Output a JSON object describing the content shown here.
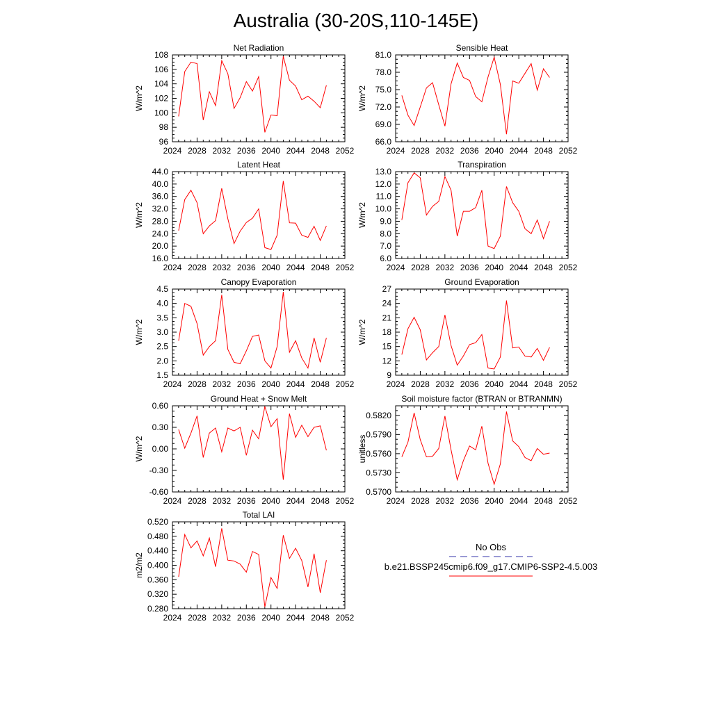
{
  "figure": {
    "title": "Australia (30-20S,110-145E)"
  },
  "legend": {
    "entries": [
      {
        "label": "No Obs",
        "color": "#3333aa",
        "dash": true
      },
      {
        "label": "b.e21.BSSP245cmip6.f09_g17.CMIP6-SSP2-4.5.003",
        "color": "#ff0000",
        "dash": false
      }
    ]
  },
  "chart_data": [
    {
      "type": "line",
      "title": "Net Radiation",
      "ylabel": "W/m^2",
      "xlim": [
        2024,
        2052
      ],
      "ylim": [
        96,
        108
      ],
      "xticks": [
        2024,
        2028,
        2032,
        2036,
        2040,
        2044,
        2048,
        2052
      ],
      "yticks": [
        96,
        98,
        100,
        102,
        104,
        106,
        108
      ],
      "ytick_labels": [
        "96",
        "98",
        "100",
        "102",
        "104",
        "106",
        "108"
      ],
      "series": [
        {
          "color": "#ff0000",
          "x": [
            2025,
            2026,
            2027,
            2028,
            2029,
            2030,
            2031,
            2032,
            2033,
            2034,
            2035,
            2036,
            2037,
            2038,
            2039,
            2040,
            2041,
            2042,
            2043,
            2044,
            2045,
            2046,
            2047,
            2048,
            2049
          ],
          "y": [
            99.5,
            105.7,
            107.0,
            106.8,
            99.0,
            102.9,
            101.0,
            107.2,
            105.4,
            100.6,
            102.1,
            104.3,
            103.0,
            105.0,
            97.3,
            99.7,
            99.6,
            107.8,
            104.5,
            103.7,
            101.8,
            102.3,
            101.6,
            100.7,
            103.8
          ]
        }
      ]
    },
    {
      "type": "line",
      "title": "Sensible Heat",
      "ylabel": "W/m^2",
      "xlim": [
        2024,
        2052
      ],
      "ylim": [
        66,
        81
      ],
      "xticks": [
        2024,
        2028,
        2032,
        2036,
        2040,
        2044,
        2048,
        2052
      ],
      "yticks": [
        66,
        69,
        72,
        75,
        78,
        81
      ],
      "ytick_labels": [
        "66.0",
        "69.0",
        "72.0",
        "75.0",
        "78.0",
        "81.0"
      ],
      "series": [
        {
          "color": "#ff0000",
          "x": [
            2025,
            2026,
            2027,
            2028,
            2029,
            2030,
            2031,
            2032,
            2033,
            2034,
            2035,
            2036,
            2037,
            2038,
            2039,
            2040,
            2041,
            2042,
            2043,
            2044,
            2045,
            2046,
            2047,
            2048,
            2049
          ],
          "y": [
            74.0,
            70.6,
            68.8,
            72.0,
            75.3,
            76.2,
            72.4,
            68.7,
            76.0,
            79.6,
            77.1,
            76.6,
            73.8,
            72.9,
            77.2,
            80.6,
            75.9,
            67.3,
            76.5,
            76.1,
            77.8,
            79.5,
            74.9,
            78.6,
            77.1
          ]
        }
      ]
    },
    {
      "type": "line",
      "title": "Latent Heat",
      "ylabel": "W/m^2",
      "xlim": [
        2024,
        2052
      ],
      "ylim": [
        16,
        44
      ],
      "xticks": [
        2024,
        2028,
        2032,
        2036,
        2040,
        2044,
        2048,
        2052
      ],
      "yticks": [
        16,
        20,
        24,
        28,
        32,
        36,
        40,
        44
      ],
      "ytick_labels": [
        "16.0",
        "20.0",
        "24.0",
        "28.0",
        "32.0",
        "36.0",
        "40.0",
        "44.0"
      ],
      "series": [
        {
          "color": "#ff0000",
          "x": [
            2025,
            2026,
            2027,
            2028,
            2029,
            2030,
            2031,
            2032,
            2033,
            2034,
            2035,
            2036,
            2037,
            2038,
            2039,
            2040,
            2041,
            2042,
            2043,
            2044,
            2045,
            2046,
            2047,
            2048,
            2049
          ],
          "y": [
            25.0,
            35.0,
            38.0,
            34.0,
            24.0,
            26.5,
            28.2,
            38.6,
            28.8,
            20.8,
            24.8,
            27.6,
            29.0,
            32.0,
            19.5,
            18.9,
            23.5,
            41.0,
            27.5,
            27.4,
            23.5,
            22.8,
            26.4,
            21.8,
            26.5
          ]
        }
      ]
    },
    {
      "type": "line",
      "title": "Transpiration",
      "ylabel": "W/m^2",
      "xlim": [
        2024,
        2052
      ],
      "ylim": [
        6,
        13
      ],
      "xticks": [
        2024,
        2028,
        2032,
        2036,
        2040,
        2044,
        2048,
        2052
      ],
      "yticks": [
        6,
        7,
        8,
        9,
        10,
        11,
        12,
        13
      ],
      "ytick_labels": [
        "6.0",
        "7.0",
        "8.0",
        "9.0",
        "10.0",
        "11.0",
        "12.0",
        "13.0"
      ],
      "series": [
        {
          "color": "#ff0000",
          "x": [
            2025,
            2026,
            2027,
            2028,
            2029,
            2030,
            2031,
            2032,
            2033,
            2034,
            2035,
            2036,
            2037,
            2038,
            2039,
            2040,
            2041,
            2042,
            2043,
            2044,
            2045,
            2046,
            2047,
            2048,
            2049
          ],
          "y": [
            9.1,
            12.1,
            12.9,
            12.5,
            9.5,
            10.2,
            10.6,
            12.6,
            11.5,
            7.8,
            9.8,
            9.8,
            10.1,
            11.5,
            7.0,
            6.8,
            7.8,
            11.8,
            10.5,
            9.8,
            8.4,
            8.0,
            9.1,
            7.6,
            9.0
          ]
        }
      ]
    },
    {
      "type": "line",
      "title": "Canopy Evaporation",
      "ylabel": "W/m^2",
      "xlim": [
        2024,
        2052
      ],
      "ylim": [
        1.5,
        4.5
      ],
      "xticks": [
        2024,
        2028,
        2032,
        2036,
        2040,
        2044,
        2048,
        2052
      ],
      "yticks": [
        1.5,
        2.0,
        2.5,
        3.0,
        3.5,
        4.0,
        4.5
      ],
      "ytick_labels": [
        "1.5",
        "2.0",
        "2.5",
        "3.0",
        "3.5",
        "4.0",
        "4.5"
      ],
      "series": [
        {
          "color": "#ff0000",
          "x": [
            2025,
            2026,
            2027,
            2028,
            2029,
            2030,
            2031,
            2032,
            2033,
            2034,
            2035,
            2036,
            2037,
            2038,
            2039,
            2040,
            2041,
            2042,
            2043,
            2044,
            2045,
            2046,
            2047,
            2048,
            2049
          ],
          "y": [
            2.7,
            4.0,
            3.9,
            3.3,
            2.2,
            2.5,
            2.7,
            4.3,
            2.4,
            1.95,
            1.9,
            2.35,
            2.85,
            2.9,
            2.0,
            1.75,
            2.5,
            4.4,
            2.3,
            2.7,
            2.1,
            1.75,
            2.8,
            1.95,
            2.8
          ]
        }
      ]
    },
    {
      "type": "line",
      "title": "Ground Evaporation",
      "ylabel": "W/m^2",
      "xlim": [
        2024,
        2052
      ],
      "ylim": [
        9,
        27
      ],
      "xticks": [
        2024,
        2028,
        2032,
        2036,
        2040,
        2044,
        2048,
        2052
      ],
      "yticks": [
        9,
        12,
        15,
        18,
        21,
        24,
        27
      ],
      "ytick_labels": [
        "9",
        "12",
        "15",
        "18",
        "21",
        "24",
        "27"
      ],
      "series": [
        {
          "color": "#ff0000",
          "x": [
            2025,
            2026,
            2027,
            2028,
            2029,
            2030,
            2031,
            2032,
            2033,
            2034,
            2035,
            2036,
            2037,
            2038,
            2039,
            2040,
            2041,
            2042,
            2043,
            2044,
            2045,
            2046,
            2047,
            2048,
            2049
          ],
          "y": [
            13.3,
            18.7,
            21.1,
            18.5,
            12.2,
            13.7,
            15.0,
            21.6,
            15.2,
            11.1,
            13.0,
            15.4,
            15.8,
            17.5,
            10.5,
            10.3,
            12.8,
            24.6,
            14.7,
            14.9,
            13.0,
            12.8,
            14.6,
            12.1,
            14.8
          ]
        }
      ]
    },
    {
      "type": "line",
      "title": "Ground Heat + Snow Melt",
      "ylabel": "W/m^2",
      "xlim": [
        2024,
        2052
      ],
      "ylim": [
        -0.6,
        0.6
      ],
      "xticks": [
        2024,
        2028,
        2032,
        2036,
        2040,
        2044,
        2048,
        2052
      ],
      "yticks": [
        -0.6,
        -0.3,
        0.0,
        0.3,
        0.6
      ],
      "ytick_labels": [
        "-0.60",
        "-0.30",
        "0.00",
        "0.30",
        "0.60"
      ],
      "series": [
        {
          "color": "#ff0000",
          "x": [
            2025,
            2026,
            2027,
            2028,
            2029,
            2030,
            2031,
            2032,
            2033,
            2034,
            2035,
            2036,
            2037,
            2038,
            2039,
            2040,
            2041,
            2042,
            2043,
            2044,
            2045,
            2046,
            2047,
            2048,
            2049
          ],
          "y": [
            0.27,
            0.01,
            0.22,
            0.46,
            -0.12,
            0.22,
            0.29,
            -0.04,
            0.29,
            0.25,
            0.3,
            -0.09,
            0.26,
            0.14,
            0.59,
            0.31,
            0.42,
            -0.43,
            0.49,
            0.16,
            0.33,
            0.17,
            0.3,
            0.32,
            -0.02
          ]
        }
      ]
    },
    {
      "type": "line",
      "title": "Soil moisture factor (BTRAN or BTRANMN)",
      "ylabel": "unitless",
      "xlim": [
        2024,
        2052
      ],
      "ylim": [
        0.57,
        0.5835
      ],
      "xticks": [
        2024,
        2028,
        2032,
        2036,
        2040,
        2044,
        2048,
        2052
      ],
      "yticks": [
        0.57,
        0.573,
        0.576,
        0.579,
        0.582
      ],
      "ytick_labels": [
        "0.5700",
        "0.5730",
        "0.5760",
        "0.5790",
        "0.5820"
      ],
      "series": [
        {
          "color": "#ff0000",
          "x": [
            2025,
            2026,
            2027,
            2028,
            2029,
            2030,
            2031,
            2032,
            2033,
            2034,
            2035,
            2036,
            2037,
            2038,
            2039,
            2040,
            2041,
            2042,
            2043,
            2044,
            2045,
            2046,
            2047,
            2048,
            2049
          ],
          "y": [
            0.5755,
            0.5778,
            0.5824,
            0.5782,
            0.5755,
            0.5756,
            0.5768,
            0.5819,
            0.5766,
            0.5719,
            0.5749,
            0.5772,
            0.5766,
            0.5803,
            0.5745,
            0.5712,
            0.5744,
            0.5826,
            0.578,
            0.5771,
            0.5754,
            0.5749,
            0.5768,
            0.5759,
            0.5761
          ]
        }
      ]
    },
    {
      "type": "line",
      "title": "Total LAI",
      "ylabel": "m2/m2",
      "xlim": [
        2024,
        2052
      ],
      "ylim": [
        0.28,
        0.52
      ],
      "xticks": [
        2024,
        2028,
        2032,
        2036,
        2040,
        2044,
        2048,
        2052
      ],
      "yticks": [
        0.28,
        0.32,
        0.36,
        0.4,
        0.44,
        0.48,
        0.52
      ],
      "ytick_labels": [
        "0.280",
        "0.320",
        "0.360",
        "0.400",
        "0.440",
        "0.480",
        "0.520"
      ],
      "series": [
        {
          "color": "#ff0000",
          "x": [
            2025,
            2026,
            2027,
            2028,
            2029,
            2030,
            2031,
            2032,
            2033,
            2034,
            2035,
            2036,
            2037,
            2038,
            2039,
            2040,
            2041,
            2042,
            2043,
            2044,
            2045,
            2046,
            2047,
            2048,
            2049
          ],
          "y": [
            0.368,
            0.485,
            0.448,
            0.467,
            0.426,
            0.475,
            0.396,
            0.502,
            0.414,
            0.412,
            0.403,
            0.381,
            0.438,
            0.43,
            0.285,
            0.366,
            0.336,
            0.483,
            0.419,
            0.447,
            0.413,
            0.34,
            0.432,
            0.324,
            0.414
          ]
        }
      ]
    }
  ]
}
